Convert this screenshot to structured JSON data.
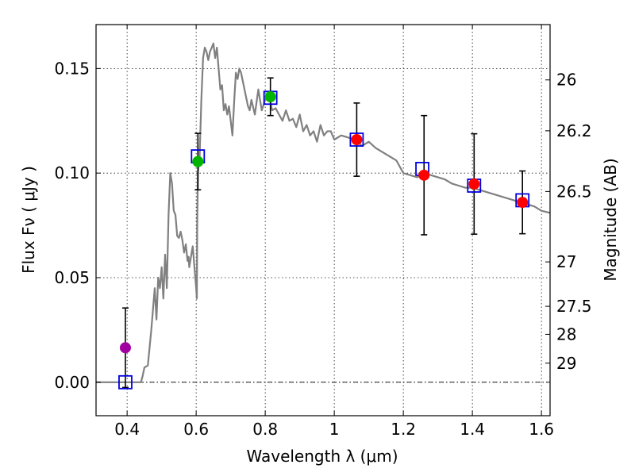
{
  "chart_data": {
    "type": "scatter",
    "xlabel": "Wavelength  λ (μm)",
    "ylabel": "Flux  Fν  ( μJy )",
    "y2label": "Magnitude (AB)",
    "xlim": [
      0.31,
      1.625
    ],
    "ylim": [
      -0.016,
      0.171
    ],
    "grid": true,
    "x_ticks": [
      0.4,
      0.6,
      0.8,
      1.0,
      1.2,
      1.4,
      1.6
    ],
    "x_tick_labels": [
      "0.4",
      "0.6",
      "0.8",
      "1",
      "1.2",
      "1.4",
      "1.6"
    ],
    "y_ticks": [
      0.0,
      0.05,
      0.1,
      0.15
    ],
    "y_tick_labels": [
      "0.00",
      "0.05",
      "0.10",
      "0.15"
    ],
    "mag_ticks": [
      {
        "label": "26",
        "value": 26.0
      },
      {
        "label": "26.2",
        "value": 26.2
      },
      {
        "label": "26.5",
        "value": 26.5
      },
      {
        "label": "27",
        "value": 27.0
      },
      {
        "label": "27.5",
        "value": 27.5
      },
      {
        "label": "28",
        "value": 28.0
      },
      {
        "label": "29",
        "value": 29.0
      }
    ],
    "observed_points": [
      {
        "x": 0.395,
        "y": 0.0165,
        "err": 0.019,
        "color": "#a000a0"
      },
      {
        "x": 0.605,
        "y": 0.1055,
        "err": 0.0135,
        "color": "#00b400"
      },
      {
        "x": 0.815,
        "y": 0.1365,
        "err": 0.009,
        "color": "#00b400"
      },
      {
        "x": 1.065,
        "y": 0.116,
        "err": 0.0175,
        "color": "#ff0000"
      },
      {
        "x": 1.26,
        "y": 0.099,
        "err": 0.0285,
        "color": "#ff0000"
      },
      {
        "x": 1.405,
        "y": 0.0948,
        "err": 0.024,
        "color": "#ff0000"
      },
      {
        "x": 1.545,
        "y": 0.086,
        "err": 0.015,
        "color": "#ff0000"
      }
    ],
    "model_points": [
      {
        "x": 0.395,
        "y": 0.0
      },
      {
        "x": 0.605,
        "y": 0.108
      },
      {
        "x": 0.815,
        "y": 0.136
      },
      {
        "x": 1.065,
        "y": 0.116
      },
      {
        "x": 1.255,
        "y": 0.102
      },
      {
        "x": 1.405,
        "y": 0.094
      },
      {
        "x": 1.545,
        "y": 0.087
      }
    ],
    "model_spectrum": {
      "x": [
        0.31,
        0.44,
        0.445,
        0.45,
        0.46,
        0.47,
        0.475,
        0.48,
        0.485,
        0.49,
        0.495,
        0.5,
        0.505,
        0.51,
        0.515,
        0.52,
        0.525,
        0.53,
        0.535,
        0.54,
        0.545,
        0.55,
        0.555,
        0.56,
        0.565,
        0.57,
        0.575,
        0.578,
        0.58,
        0.585,
        0.59,
        0.595,
        0.6,
        0.602,
        0.603,
        0.605,
        0.61,
        0.615,
        0.62,
        0.625,
        0.63,
        0.635,
        0.64,
        0.645,
        0.65,
        0.655,
        0.66,
        0.665,
        0.67,
        0.675,
        0.68,
        0.685,
        0.69,
        0.695,
        0.7,
        0.705,
        0.71,
        0.715,
        0.72,
        0.725,
        0.73,
        0.74,
        0.75,
        0.755,
        0.76,
        0.77,
        0.78,
        0.79,
        0.8,
        0.81,
        0.82,
        0.83,
        0.84,
        0.85,
        0.86,
        0.87,
        0.88,
        0.89,
        0.9,
        0.91,
        0.92,
        0.93,
        0.94,
        0.95,
        0.96,
        0.97,
        0.98,
        0.99,
        1.0,
        1.02,
        1.04,
        1.06,
        1.08,
        1.1,
        1.12,
        1.14,
        1.16,
        1.18,
        1.2,
        1.22,
        1.24,
        1.26,
        1.28,
        1.3,
        1.32,
        1.34,
        1.36,
        1.38,
        1.4,
        1.42,
        1.44,
        1.46,
        1.48,
        1.5,
        1.52,
        1.54,
        1.56,
        1.58,
        1.6,
        1.625
      ],
      "y": [
        0.0,
        0.0,
        0.003,
        0.007,
        0.008,
        0.025,
        0.035,
        0.045,
        0.03,
        0.05,
        0.045,
        0.055,
        0.04,
        0.061,
        0.045,
        0.08,
        0.1,
        0.095,
        0.082,
        0.08,
        0.07,
        0.069,
        0.072,
        0.068,
        0.062,
        0.066,
        0.058,
        0.06,
        0.055,
        0.06,
        0.065,
        0.055,
        0.045,
        0.04,
        0.075,
        0.1,
        0.108,
        0.135,
        0.155,
        0.16,
        0.158,
        0.154,
        0.158,
        0.16,
        0.162,
        0.155,
        0.16,
        0.15,
        0.14,
        0.142,
        0.13,
        0.133,
        0.128,
        0.132,
        0.125,
        0.118,
        0.134,
        0.148,
        0.145,
        0.15,
        0.148,
        0.14,
        0.132,
        0.13,
        0.135,
        0.128,
        0.14,
        0.13,
        0.135,
        0.138,
        0.13,
        0.131,
        0.128,
        0.125,
        0.13,
        0.125,
        0.126,
        0.122,
        0.128,
        0.12,
        0.123,
        0.118,
        0.12,
        0.115,
        0.123,
        0.118,
        0.12,
        0.12,
        0.116,
        0.118,
        0.117,
        0.116,
        0.113,
        0.115,
        0.112,
        0.11,
        0.108,
        0.106,
        0.1,
        0.099,
        0.098,
        0.1,
        0.099,
        0.098,
        0.097,
        0.095,
        0.094,
        0.093,
        0.093,
        0.092,
        0.091,
        0.09,
        0.089,
        0.088,
        0.087,
        0.086,
        0.085,
        0.084,
        0.082,
        0.081
      ]
    }
  }
}
